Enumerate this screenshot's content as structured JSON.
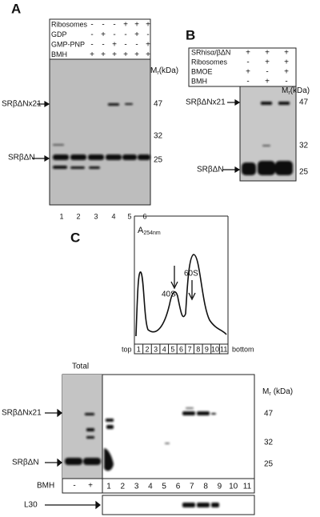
{
  "panel_a": {
    "letter": "A",
    "conditions": [
      {
        "label": "Ribosomes",
        "signs": [
          "-",
          "-",
          "-",
          "+",
          "+",
          "+"
        ]
      },
      {
        "label": "GDP",
        "signs": [
          "-",
          "+",
          "-",
          "-",
          "+",
          "-"
        ]
      },
      {
        "label": "GMP-PNP",
        "signs": [
          "-",
          "-",
          "+",
          "-",
          "-",
          "+"
        ]
      },
      {
        "label": "BMH",
        "signs": [
          "+",
          "+",
          "+",
          "+",
          "+",
          "+"
        ]
      }
    ],
    "mr_label": {
      "m": "M",
      "r": "r",
      "unit": "(kDa)"
    },
    "markers": [
      "47",
      "32",
      "25"
    ],
    "bands": [
      "SRβΔNx21",
      "SRβΔN"
    ],
    "lanes": [
      "1",
      "2",
      "3",
      "4",
      "5",
      "6"
    ]
  },
  "panel_b": {
    "letter": "B",
    "conditions": [
      {
        "label": "SRhisα/βΔN",
        "signs": [
          "+",
          "+",
          "+"
        ]
      },
      {
        "label": "Ribosomes",
        "signs": [
          "-",
          "+",
          "+"
        ]
      },
      {
        "label": "BMOE",
        "signs": [
          "+",
          "-",
          "+"
        ]
      },
      {
        "label": "BMH",
        "signs": [
          "-",
          "+",
          "-"
        ]
      }
    ],
    "mr_label": {
      "m": "M",
      "r": "r",
      "unit": "(kDa)"
    },
    "markers": [
      "47",
      "32",
      "25"
    ],
    "bands": [
      "SRβΔNx21",
      "SRβΔN"
    ]
  },
  "panel_c": {
    "letter": "C",
    "absorbance": {
      "main": "A",
      "sub": "254nm"
    },
    "peaks": [
      "40S",
      "60S"
    ],
    "top": "top",
    "bottom": "bottom",
    "fractions": [
      "1",
      "2",
      "3",
      "4",
      "5",
      "6",
      "7",
      "8",
      "9",
      "10",
      "11"
    ],
    "total": "Total",
    "mr_label": {
      "m": "M",
      "r": "r",
      "unit": "(kDa)"
    },
    "markers": [
      "47",
      "32",
      "25"
    ],
    "bands": [
      "SRβΔNx21",
      "SRβΔN"
    ],
    "bmh": {
      "label": "BMH",
      "total_signs": [
        "-",
        "+"
      ]
    },
    "l30": "L30"
  }
}
